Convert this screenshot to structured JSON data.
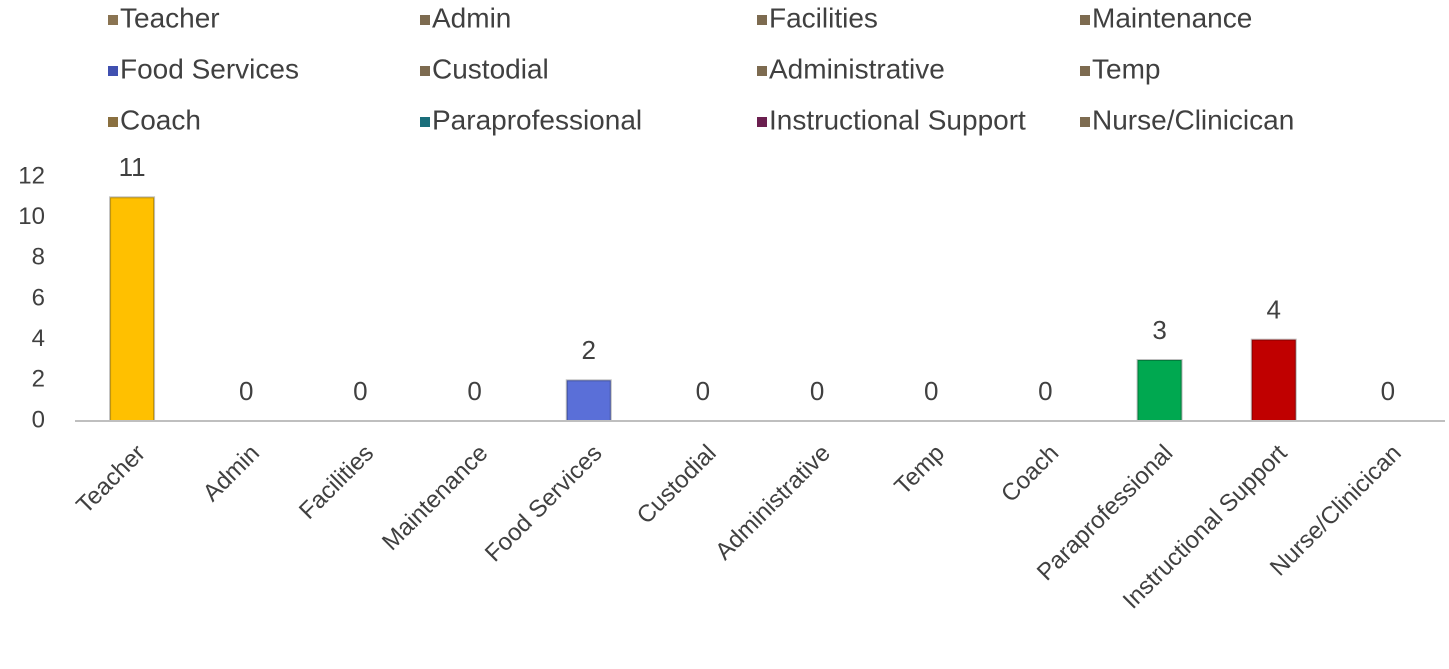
{
  "chart_data": {
    "type": "bar",
    "categories": [
      "Teacher",
      "Admin",
      "Facilities",
      "Maintenance",
      "Food Services",
      "Custodial",
      "Administrative",
      "Temp",
      "Coach",
      "Paraprofessional",
      "Instructional Support",
      "Nurse/Clinicican"
    ],
    "values": [
      11,
      0,
      0,
      0,
      2,
      0,
      0,
      0,
      0,
      3,
      4,
      0
    ],
    "colors": [
      "#ffc000",
      "#7d6b50",
      "#7d6b50",
      "#7d6b50",
      "#5a6fd8",
      "#7d6b50",
      "#7d6b50",
      "#7d6b50",
      "#7d6b50",
      "#00a850",
      "#c00000",
      "#7d6b50"
    ],
    "legend_colors": [
      "#8a7452",
      "#7d6b50",
      "#7d6b50",
      "#7d6b50",
      "#4050b0",
      "#7d6b50",
      "#7d6b50",
      "#7d6b50",
      "#8a7040",
      "#1a6e7a",
      "#6b1f4f",
      "#7d6b50"
    ],
    "ylim": [
      0,
      12
    ],
    "yticks": [
      0,
      2,
      4,
      6,
      8,
      10,
      12
    ],
    "grid": false,
    "legend": "top"
  }
}
